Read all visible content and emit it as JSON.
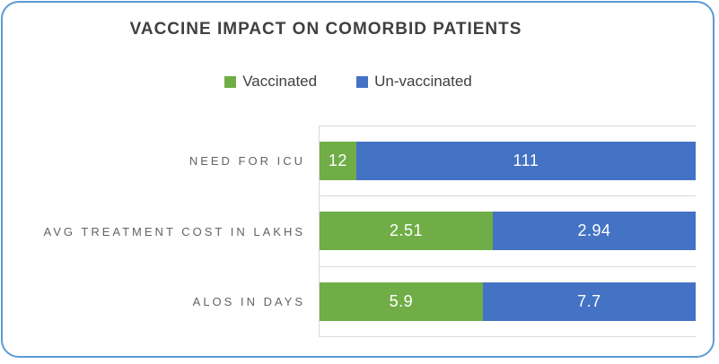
{
  "frame": {
    "background": "#FFFFFF",
    "border_color": "#5B9BD5"
  },
  "chart_data": {
    "type": "bar",
    "orientation": "horizontal",
    "stacking": "100%",
    "title": "VACCINE IMPACT ON COMORBID PATIENTS",
    "categories": [
      "NEED FOR ICU",
      "AVG TREATMENT COST IN LAKHS",
      "ALOS IN DAYS"
    ],
    "series": [
      {
        "name": "Vaccinated",
        "color": "#70AD47",
        "values": [
          12,
          2.51,
          5.9
        ],
        "labels": [
          "12",
          "2.51",
          "5.9"
        ]
      },
      {
        "name": "Un-vaccinated",
        "color": "#4472C4",
        "values": [
          111,
          2.94,
          7.7
        ],
        "labels": [
          "111",
          "2.94",
          "7.7"
        ]
      }
    ],
    "legend_position": "top-center",
    "data_label_color": "#FFFFFF",
    "gridline_color": "#D9D9D9",
    "axis_range_percent": [
      0,
      100
    ],
    "value_axis_visible": false
  }
}
